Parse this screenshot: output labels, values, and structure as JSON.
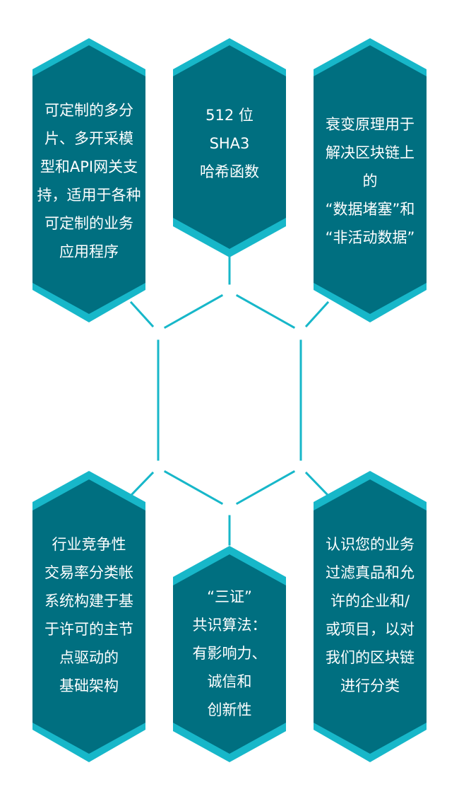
{
  "colors": {
    "hex_fill": "#006f80",
    "hex_border": "#17b7c9",
    "connector": "#17b7c9",
    "text": "#ffffff",
    "background": "#ffffff"
  },
  "cards": {
    "top_left": {
      "lines": [
        "可定制的多分",
        "片、多开采模",
        "型和API网关支",
        "持，适用于各种",
        "可定制的业务",
        "应用程序"
      ]
    },
    "top_center": {
      "lines": [
        "512 位",
        "SHA3",
        "哈希函数"
      ]
    },
    "top_right": {
      "lines": [
        "衰变原理用于",
        "解决区块链上",
        "的",
        "“数据堵塞”和",
        "“非活动数据”"
      ]
    },
    "bottom_left": {
      "lines": [
        "行业竞争性",
        "交易率分类帐",
        "系统构建于基",
        "于许可的主节",
        "点驱动的",
        "基础架构"
      ]
    },
    "bottom_center": {
      "lines": [
        "“三证”",
        "共识算法：",
        "有影响力、",
        "诚信和",
        "创新性"
      ]
    },
    "bottom_right": {
      "lines": [
        "认识您的业务",
        "过滤真品和允",
        "许的企业和/",
        "或项目，以对",
        "我们的区块链",
        "进行分类"
      ]
    }
  }
}
